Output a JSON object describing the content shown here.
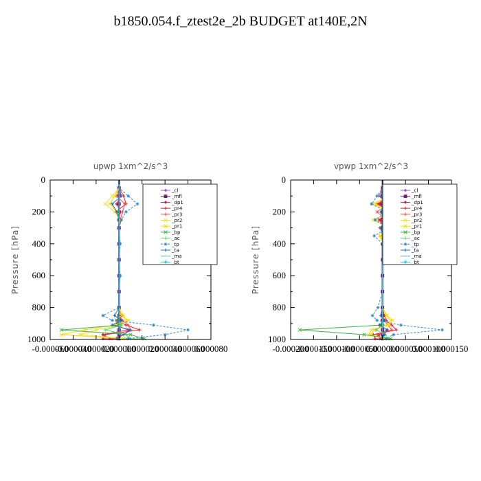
{
  "figure": {
    "title": "b1850.054.f_ztest2e_2b  BUDGET at140E,2N"
  },
  "chart_data": [
    {
      "type": "line",
      "title": "upwp   1xm^2/s^3",
      "xlabel": "",
      "ylabel": "Pressure  [hPa]",
      "xlim": [
        -6e-05,
        8e-05
      ],
      "ylim": [
        1000,
        0
      ],
      "x_tick_labels": [
        "-0.000060",
        "-0.000040",
        "-0.000020",
        "0.000000",
        "0.000020",
        "0.000040",
        "0.000060",
        "0.000080"
      ],
      "y_tick_labels": [
        "0",
        "200",
        "400",
        "600",
        "800",
        "1000"
      ],
      "legend_position": "upper-right",
      "levels": [
        50,
        100,
        150,
        200,
        250,
        300,
        400,
        500,
        600,
        700,
        800,
        850,
        880,
        910,
        940,
        970,
        995
      ],
      "series": [
        {
          "name": "_cl",
          "color": "#9b59d0",
          "values": [
            0,
            0,
            0,
            0,
            0,
            0,
            0,
            0,
            0,
            0,
            0,
            0,
            0,
            0,
            0,
            0,
            0
          ]
        },
        {
          "name": "_mfl",
          "color": "#6a1b6a",
          "values": [
            0,
            0,
            0,
            0,
            0,
            0,
            0,
            0,
            0,
            0,
            0,
            0,
            0,
            0,
            0,
            0,
            0
          ]
        },
        {
          "name": "_dp1",
          "color": "#cc1e5a",
          "values": [
            0,
            1e-06,
            -2e-06,
            1e-06,
            0,
            0,
            0,
            0,
            0,
            0,
            0,
            0,
            2e-06,
            -4e-06,
            8e-06,
            -1.4e-05,
            -8e-06
          ]
        },
        {
          "name": "_pr4",
          "color": "#e02020",
          "values": [
            0,
            4e-06,
            6e-06,
            -3e-06,
            2e-06,
            0,
            0,
            0,
            0,
            0,
            0,
            2e-06,
            -2e-06,
            6e-06,
            1.8e-05,
            -1.2e-05,
            -1.4e-05
          ]
        },
        {
          "name": "_pr3",
          "color": "#ff4444",
          "values": [
            0,
            -2e-06,
            5e-06,
            3e-06,
            1e-06,
            0,
            0,
            0,
            0,
            0,
            0,
            0,
            3e-06,
            8e-06,
            1e-05,
            4e-06,
            -6e-06
          ]
        },
        {
          "name": "_pr2",
          "color": "#f0e030",
          "values": [
            0,
            -6e-06,
            -1.2e-05,
            -4e-06,
            1e-06,
            0,
            0,
            0,
            0,
            0,
            0,
            4e-06,
            6e-06,
            2e-06,
            -2e-05,
            -3.4e-05,
            6e-06
          ]
        },
        {
          "name": "_pr1",
          "color": "#ffd700",
          "values": [
            0,
            -4e-06,
            -8e-06,
            -2e-06,
            0,
            0,
            0,
            0,
            0,
            0,
            0,
            2e-06,
            8e-06,
            -4e-06,
            -3e-05,
            -5e-05,
            4e-06
          ]
        },
        {
          "name": "_bp",
          "color": "#3cb43c",
          "values": [
            0,
            0,
            0,
            0,
            0,
            0,
            0,
            0,
            0,
            0,
            0,
            0,
            -2e-06,
            1e-06,
            -5e-05,
            1e-05,
            2.2e-05
          ]
        },
        {
          "name": "_ac",
          "color": "#60d060",
          "values": [
            0,
            0,
            0,
            0,
            0,
            0,
            0,
            0,
            0,
            0,
            0,
            0,
            0,
            2e-06,
            -1.2e-05,
            6e-06,
            1e-05
          ]
        },
        {
          "name": "_tp",
          "color": "#2a8ad4",
          "values": [
            0,
            8e-06,
            1.6e-05,
            6e-06,
            2e-06,
            0,
            1e-06,
            0,
            1e-06,
            0,
            0,
            -1.4e-05,
            -6e-06,
            3e-05,
            6e-05,
            4e-05,
            8e-06
          ]
        },
        {
          "name": "_ta",
          "color": "#1a6fb0",
          "values": [
            0,
            2e-06,
            -6e-06,
            -2e-06,
            0,
            0,
            0,
            0,
            0,
            0,
            0,
            -4e-06,
            2e-06,
            -6e-06,
            1e-05,
            4e-06,
            -2e-06
          ]
        },
        {
          "name": "_ma",
          "color": "#5aaadc",
          "values": [
            0,
            0,
            0,
            0,
            0,
            0,
            0,
            0,
            0,
            0,
            0,
            0,
            0,
            0,
            0,
            0,
            0
          ]
        },
        {
          "name": "_bt",
          "color": "#20c8e8",
          "values": [
            0,
            0,
            0,
            0,
            0,
            0,
            0,
            0,
            0,
            0,
            0,
            0,
            0,
            0,
            0,
            0,
            0
          ]
        }
      ]
    },
    {
      "type": "line",
      "title": "vpwp   1xm^2/s^3",
      "xlabel": "",
      "ylabel": "Pressure  [hPa]",
      "xlim": [
        -0.0002,
        0.00015
      ],
      "ylim": [
        1000,
        0
      ],
      "x_tick_labels": [
        "-0.000200",
        "-0.000150",
        "-0.000100",
        "-0.000050",
        "0.000000",
        "0.000050",
        "0.000100",
        "0.000150"
      ],
      "y_tick_labels": [
        "0",
        "200",
        "400",
        "600",
        "800",
        "1000"
      ],
      "legend_position": "upper-right",
      "levels": [
        50,
        100,
        150,
        200,
        250,
        300,
        350,
        400,
        500,
        600,
        700,
        800,
        850,
        880,
        910,
        940,
        970,
        995
      ],
      "series": [
        {
          "name": "_cl",
          "color": "#9b59d0",
          "values": [
            0,
            0,
            0,
            0,
            0,
            0,
            0,
            0,
            0,
            0,
            0,
            0,
            0,
            0,
            0,
            0,
            0,
            0
          ]
        },
        {
          "name": "_mfl",
          "color": "#6a1b6a",
          "values": [
            0,
            0,
            0,
            0,
            0,
            0,
            0,
            0,
            0,
            0,
            0,
            0,
            0,
            0,
            0,
            0,
            0,
            0
          ]
        },
        {
          "name": "_dp1",
          "color": "#cc1e5a",
          "values": [
            0,
            4e-06,
            -6e-06,
            5e-06,
            -4e-06,
            4e-06,
            -2e-06,
            0,
            0,
            0,
            0,
            0,
            0,
            4e-06,
            -6e-06,
            1e-05,
            -8e-06,
            -4e-06
          ]
        },
        {
          "name": "_pr4",
          "color": "#e02020",
          "values": [
            0,
            1.2e-05,
            -1e-05,
            1.4e-05,
            -8e-06,
            6e-06,
            0,
            0,
            0,
            0,
            0,
            0,
            4e-06,
            8e-06,
            2e-05,
            3e-05,
            -2e-05,
            -1.6e-05
          ]
        },
        {
          "name": "_pr3",
          "color": "#ff4444",
          "values": [
            0,
            -8e-06,
            1.2e-05,
            -1.2e-05,
            1e-05,
            -6e-06,
            4e-06,
            0,
            0,
            0,
            0,
            0,
            0,
            4e-06,
            1.2e-05,
            2e-05,
            -1.2e-05,
            -6e-06
          ]
        },
        {
          "name": "_pr2",
          "color": "#f0e030",
          "values": [
            0,
            1.6e-05,
            -2.2e-05,
            1.8e-05,
            -2e-05,
            1.2e-05,
            -6e-06,
            0,
            0,
            0,
            0,
            0,
            1e-05,
            2.2e-05,
            1.4e-05,
            -2.4e-05,
            -3e-05,
            6e-06
          ]
        },
        {
          "name": "_pr1",
          "color": "#ffd700",
          "values": [
            0,
            1.2e-05,
            -1.6e-05,
            1.4e-05,
            -1.6e-05,
            1e-05,
            -4e-06,
            0,
            0,
            0,
            0,
            0,
            8e-06,
            1.8e-05,
            1e-05,
            -1.8e-05,
            -2.6e-05,
            4e-06
          ]
        },
        {
          "name": "_bp",
          "color": "#3cb43c",
          "values": [
            0,
            0,
            0,
            0,
            0,
            0,
            0,
            0,
            0,
            0,
            0,
            0,
            0,
            0,
            -4e-06,
            -0.00018,
            -4e-05,
            1.8e-05
          ]
        },
        {
          "name": "_ac",
          "color": "#60d060",
          "values": [
            0,
            0,
            0,
            0,
            0,
            0,
            0,
            0,
            0,
            0,
            0,
            0,
            0,
            0,
            2e-06,
            -1.4e-05,
            6e-06,
            1.2e-05
          ]
        },
        {
          "name": "_tp",
          "color": "#2a8ad4",
          "values": [
            0,
            -1.2e-05,
            -2.4e-05,
            1e-05,
            -1.6e-05,
            1.2e-05,
            -1.8e-05,
            0,
            0,
            0,
            0,
            -1e-05,
            -2.2e-05,
            -1.2e-05,
            4e-05,
            0.00013,
            2.4e-05,
            8e-06
          ]
        },
        {
          "name": "_ta",
          "color": "#1a6fb0",
          "values": [
            0,
            -4e-06,
            6e-06,
            -4e-06,
            6e-06,
            -4e-06,
            0,
            0,
            0,
            0,
            0,
            0,
            -4e-06,
            4e-06,
            -6e-06,
            1e-05,
            4e-06,
            -2e-06
          ]
        },
        {
          "name": "_ma",
          "color": "#5aaadc",
          "values": [
            0,
            0,
            0,
            0,
            0,
            0,
            0,
            0,
            0,
            0,
            0,
            0,
            0,
            0,
            0,
            0,
            0,
            0
          ]
        },
        {
          "name": "_bt",
          "color": "#20c8e8",
          "values": [
            0,
            0,
            0,
            0,
            0,
            0,
            0,
            0,
            0,
            0,
            0,
            0,
            0,
            0,
            0,
            0,
            0,
            0
          ]
        }
      ]
    }
  ]
}
